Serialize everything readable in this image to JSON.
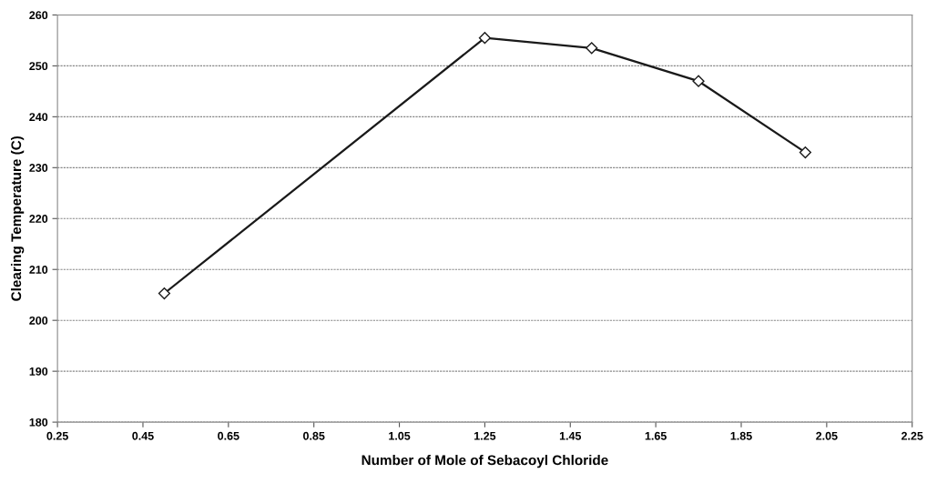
{
  "chart_data": {
    "type": "line",
    "xlabel": "Number of Mole of Sebacoyl Chloride",
    "ylabel": "Clearing Temperature (C)",
    "x": [
      0.5,
      1.25,
      1.5,
      1.75,
      2.0
    ],
    "series": [
      {
        "color": "#1a1a1a",
        "values": [
          205.3,
          255.5,
          253.5,
          247,
          233
        ]
      }
    ],
    "xlim": [
      0.25,
      2.25
    ],
    "xticks": [
      {
        "value": 0.25,
        "label": "0.25"
      },
      {
        "value": 0.45,
        "label": "0.45"
      },
      {
        "value": 0.65,
        "label": "0.65"
      },
      {
        "value": 0.85,
        "label": "0.85"
      },
      {
        "value": 1.05,
        "label": "1.05"
      },
      {
        "value": 1.25,
        "label": "1.25"
      },
      {
        "value": 1.45,
        "label": "1.45"
      },
      {
        "value": 1.65,
        "label": "1.65"
      },
      {
        "value": 1.85,
        "label": "1.85"
      },
      {
        "value": 2.05,
        "label": "2.05"
      },
      {
        "value": 2.25,
        "label": "2.25"
      }
    ],
    "ylim": [
      180,
      260
    ],
    "yticks": [
      180,
      190,
      200,
      210,
      220,
      230,
      240,
      250,
      260
    ],
    "grid": "y",
    "marker": "diamond",
    "line_style": "solid"
  }
}
